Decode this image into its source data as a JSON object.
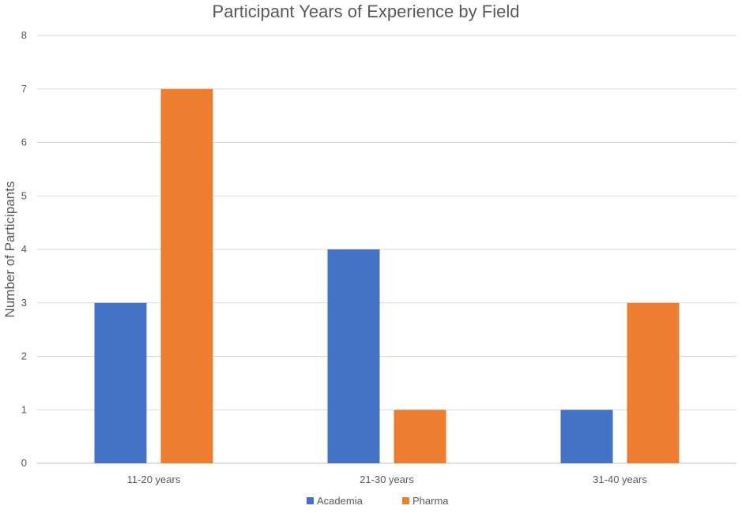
{
  "chart_data": {
    "type": "bar",
    "title": "Participant Years of Experience by Field",
    "xlabel": "",
    "ylabel": "Number of Participants",
    "categories": [
      "11-20 years",
      "21-30 years",
      "31-40 years"
    ],
    "series": [
      {
        "name": "Academia",
        "values": [
          3,
          4,
          1
        ],
        "color": "#4472C4"
      },
      {
        "name": "Pharma",
        "values": [
          7,
          1,
          3
        ],
        "color": "#ED7D31"
      }
    ],
    "ylim": [
      0,
      8
    ],
    "yticks": [
      0,
      1,
      2,
      3,
      4,
      5,
      6,
      7,
      8
    ],
    "grid": true,
    "legend_position": "bottom"
  }
}
